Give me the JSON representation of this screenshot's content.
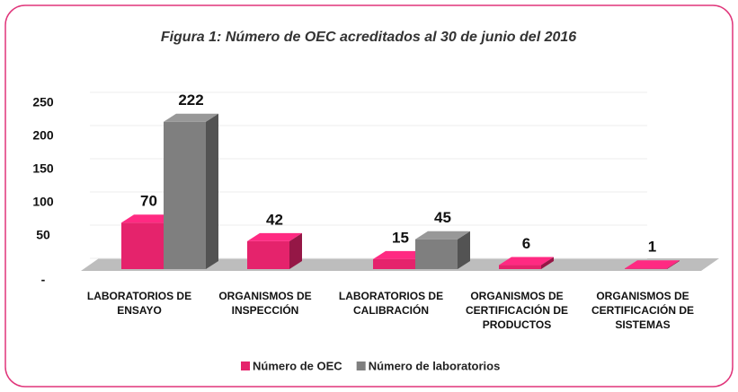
{
  "chart_data": {
    "type": "bar3d",
    "title": "Figura 1: Número de OEC acreditados al 30 de junio del 2016",
    "categories": [
      "LABORATORIOS DE\nENSAYO",
      "ORGANISMOS DE\nINSPECCIÓN",
      "LABORATORIOS DE\nCALIBRACIÓN",
      "ORGANISMOS DE\nCERTIFICACIÓN DE\nPRODUCTOS",
      "ORGANISMOS DE\nCERTIFICACIÓN DE\nSISTEMAS"
    ],
    "series": [
      {
        "name": "Número de OEC",
        "color": "#e5236c",
        "values": [
          70,
          42,
          15,
          6,
          1
        ]
      },
      {
        "name": "Número de laboratorios",
        "color": "#7f7f7f",
        "values": [
          222,
          null,
          45,
          null,
          null
        ]
      }
    ],
    "ylim": [
      0,
      250
    ],
    "yticks": [
      {
        "value": 0,
        "label": "-"
      },
      50,
      100,
      150,
      200,
      250
    ],
    "grid": true,
    "legend": "bottom"
  }
}
